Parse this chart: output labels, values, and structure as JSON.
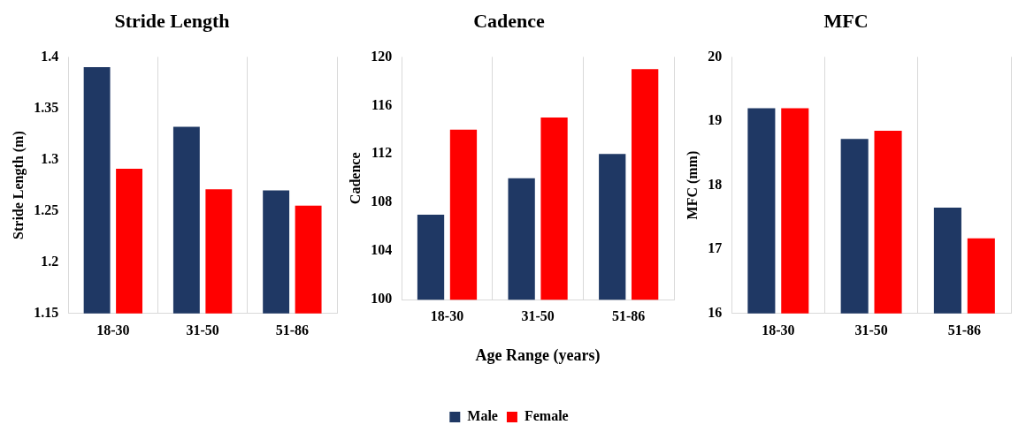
{
  "chart_data": [
    {
      "type": "bar",
      "title": "Stride Length",
      "ylabel": "Stride Length (m)",
      "categories": [
        "18-30",
        "31-50",
        "51-86"
      ],
      "series": [
        {
          "color": "#1f3864",
          "values": [
            1.39,
            1.332,
            1.27
          ]
        },
        {
          "color": "#ff0000",
          "values": [
            1.291,
            1.271,
            1.255
          ]
        }
      ],
      "ylim": [
        1.15,
        1.4
      ],
      "yticks": [
        1.15,
        1.2,
        1.25,
        1.3,
        1.35,
        1.4
      ],
      "grid": "x",
      "legend": false
    },
    {
      "type": "bar",
      "title": "Cadence",
      "ylabel": "Cadence",
      "xlabel": "Age Range (years)",
      "categories": [
        "18-30",
        "31-50",
        "51-86"
      ],
      "series": [
        {
          "name": "Male",
          "color": "#1f3864",
          "values": [
            107,
            110,
            112
          ]
        },
        {
          "name": "Female",
          "color": "#ff0000",
          "values": [
            114,
            115,
            119
          ]
        }
      ],
      "ylim": [
        100,
        120
      ],
      "yticks": [
        100,
        104,
        108,
        112,
        116,
        120
      ],
      "grid": "x",
      "legend": "bottom"
    },
    {
      "type": "bar",
      "title": "MFC",
      "ylabel": "MFC (mm)",
      "categories": [
        "18-30",
        "31-50",
        "51-86"
      ],
      "series": [
        {
          "color": "#1f3864",
          "values": [
            19.2,
            18.72,
            17.65
          ]
        },
        {
          "color": "#ff0000",
          "values": [
            19.2,
            18.85,
            17.17
          ]
        }
      ],
      "ylim": [
        16,
        20
      ],
      "yticks": [
        16,
        17,
        18,
        19,
        20
      ],
      "grid": "x",
      "legend": false
    }
  ]
}
